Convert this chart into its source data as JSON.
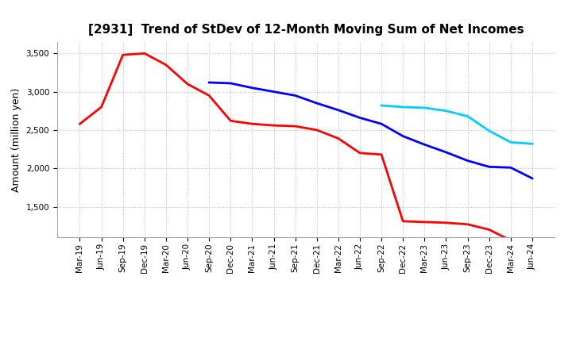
{
  "title": "[2931]  Trend of StDev of 12-Month Moving Sum of Net Incomes",
  "ylabel": "Amount (million yen)",
  "background_color": "#ffffff",
  "grid_color": "#bbbbbb",
  "ylim": [
    1100,
    3650
  ],
  "yticks": [
    1500,
    2000,
    2500,
    3000,
    3500
  ],
  "series": {
    "3 Years": {
      "color": "#ff0000",
      "data": {
        "Mar-19": 2580,
        "Jun-19": 2800,
        "Sep-19": 3480,
        "Dec-19": 3500,
        "Mar-20": 3350,
        "Jun-20": 3100,
        "Sep-20": 2950,
        "Dec-20": 2620,
        "Mar-21": 2580,
        "Jun-21": 2560,
        "Sep-21": 2550,
        "Dec-21": 2500,
        "Mar-22": 2390,
        "Jun-22": 2200,
        "Sep-22": 2180,
        "Dec-22": 1310,
        "Mar-23": 1300,
        "Jun-23": 1290,
        "Sep-23": 1270,
        "Dec-23": 1200,
        "Mar-24": 1060,
        "Jun-24": 1020
      }
    },
    "5 Years": {
      "color": "#0000ff",
      "data": {
        "Sep-20": 3120,
        "Dec-20": 3110,
        "Mar-21": 3050,
        "Jun-21": 3000,
        "Sep-21": 2950,
        "Dec-21": 2850,
        "Mar-22": 2760,
        "Jun-22": 2660,
        "Sep-22": 2580,
        "Dec-22": 2420,
        "Mar-23": 2310,
        "Jun-23": 2210,
        "Sep-23": 2100,
        "Dec-23": 2020,
        "Mar-24": 2010,
        "Jun-24": 1870
      }
    },
    "7 Years": {
      "color": "#00ccff",
      "data": {
        "Sep-22": 2820,
        "Dec-22": 2800,
        "Mar-23": 2790,
        "Jun-23": 2750,
        "Sep-23": 2680,
        "Dec-23": 2490,
        "Mar-24": 2340,
        "Jun-24": 2320
      }
    },
    "10 Years": {
      "color": "#008800",
      "data": {}
    }
  },
  "x_labels": [
    "Mar-19",
    "Jun-19",
    "Sep-19",
    "Dec-19",
    "Mar-20",
    "Jun-20",
    "Sep-20",
    "Dec-20",
    "Mar-21",
    "Jun-21",
    "Sep-21",
    "Dec-21",
    "Mar-22",
    "Jun-22",
    "Sep-22",
    "Dec-22",
    "Mar-23",
    "Jun-23",
    "Sep-23",
    "Dec-23",
    "Mar-24",
    "Jun-24"
  ],
  "title_fontsize": 11,
  "ylabel_fontsize": 9,
  "tick_fontsize": 7.5,
  "linewidth": 2.0,
  "legend_fontsize": 9
}
